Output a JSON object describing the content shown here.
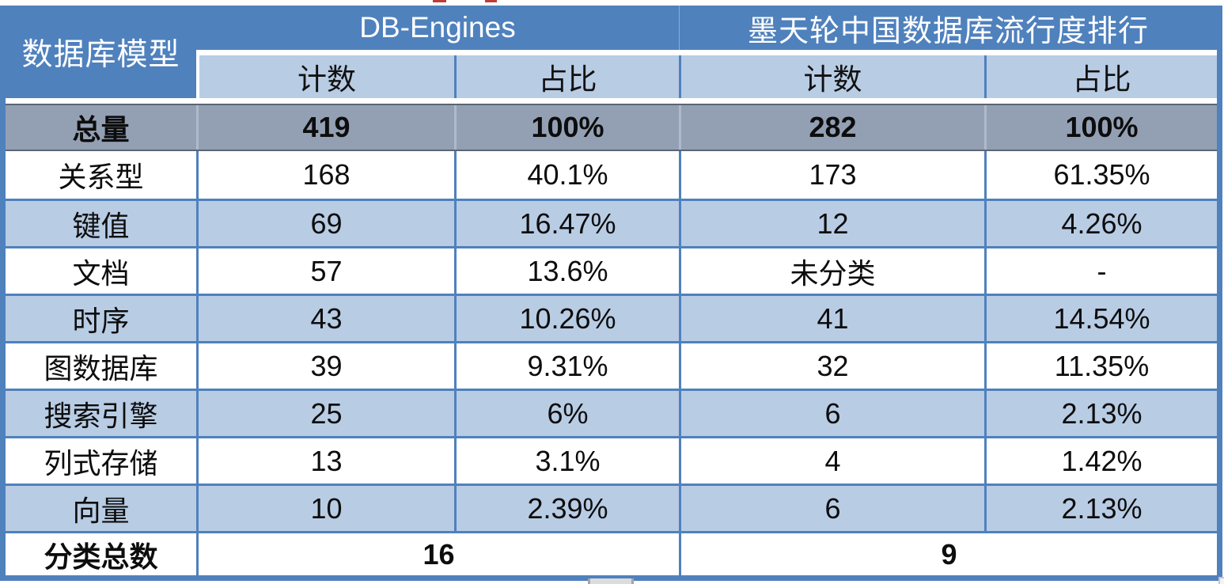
{
  "table": {
    "corner_label": "数据库模型",
    "groups": [
      {
        "label": "DB-Engines"
      },
      {
        "label": "墨天轮中国数据库流行度排行"
      }
    ],
    "sub_headers": [
      "计数",
      "占比",
      "计数",
      "占比"
    ],
    "total_row": {
      "label": "总量",
      "values": [
        "419",
        "100%",
        "282",
        "100%"
      ]
    },
    "rows": [
      {
        "label": "关系型",
        "values": [
          "168",
          "40.1%",
          "173",
          "61.35%"
        ]
      },
      {
        "label": "键值",
        "values": [
          "69",
          "16.47%",
          "12",
          "4.26%"
        ]
      },
      {
        "label": "文档",
        "values": [
          "57",
          "13.6%",
          "未分类",
          "-"
        ]
      },
      {
        "label": "时序",
        "values": [
          "43",
          "10.26%",
          "41",
          "14.54%"
        ]
      },
      {
        "label": "图数据库",
        "values": [
          "39",
          "9.31%",
          "32",
          "11.35%"
        ]
      },
      {
        "label": "搜索引擎",
        "values": [
          "25",
          "6%",
          "6",
          "2.13%"
        ]
      },
      {
        "label": "列式存储",
        "values": [
          "13",
          "3.1%",
          "4",
          "1.42%"
        ]
      },
      {
        "label": "向量",
        "values": [
          "10",
          "2.39%",
          "6",
          "2.13%"
        ]
      }
    ],
    "footer_row": {
      "label": "分类总数",
      "values": [
        "16",
        "9"
      ]
    }
  },
  "colors": {
    "header_blue": "#4f81bd",
    "subheader_light_blue": "#b8cce4",
    "alt_row_light_blue": "#b8cce4",
    "total_row_gray": "#93a0b4",
    "grid_border_blue": "#4f81bd",
    "header_text": "#ffffff",
    "body_text": "#0d0d0d"
  },
  "chart_data": {
    "type": "table",
    "title": "数据库模型 — DB-Engines vs 墨天轮中国数据库流行度排行",
    "columns": [
      "数据库模型",
      "DB-Engines 计数",
      "DB-Engines 占比",
      "墨天轮 计数",
      "墨天轮 占比"
    ],
    "rows": [
      [
        "总量",
        "419",
        "100%",
        "282",
        "100%"
      ],
      [
        "关系型",
        "168",
        "40.1%",
        "173",
        "61.35%"
      ],
      [
        "键值",
        "69",
        "16.47%",
        "12",
        "4.26%"
      ],
      [
        "文档",
        "57",
        "13.6%",
        "未分类",
        "-"
      ],
      [
        "时序",
        "43",
        "10.26%",
        "41",
        "14.54%"
      ],
      [
        "图数据库",
        "39",
        "9.31%",
        "32",
        "11.35%"
      ],
      [
        "搜索引擎",
        "25",
        "6%",
        "6",
        "2.13%"
      ],
      [
        "列式存储",
        "13",
        "3.1%",
        "4",
        "1.42%"
      ],
      [
        "向量",
        "10",
        "2.39%",
        "6",
        "2.13%"
      ],
      [
        "分类总数",
        "16",
        "",
        "9",
        ""
      ]
    ]
  }
}
